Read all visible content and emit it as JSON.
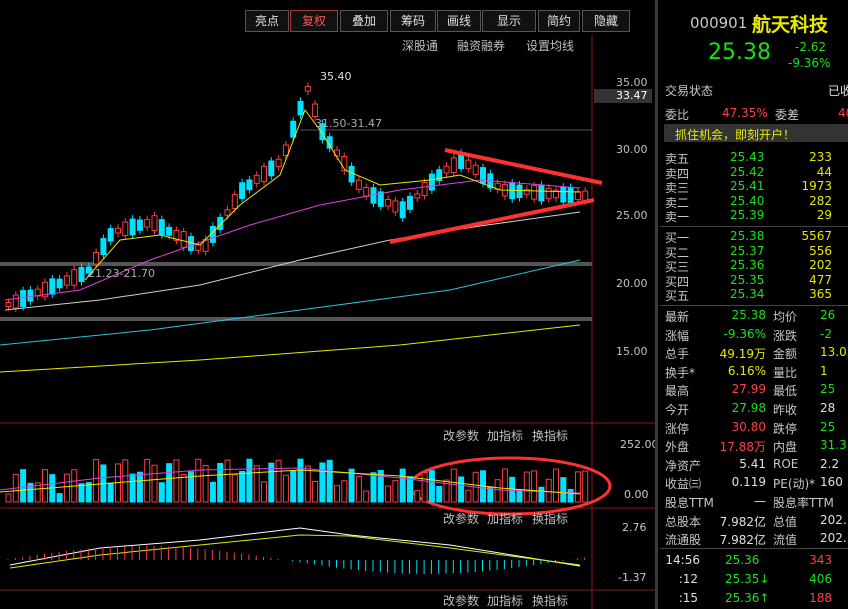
{
  "toolbar": {
    "buttons": [
      "亮点",
      "复权",
      "叠加",
      "筹码",
      "画线",
      "显示",
      "简约",
      "隐藏"
    ]
  },
  "chart_links": [
    "深股通",
    "融资融券",
    "设置均线"
  ],
  "price_axis": {
    "labels": [
      "35.00",
      "30.00",
      "25.00",
      "20.00",
      "15.00"
    ],
    "current": "33.47"
  },
  "annotations": [
    "35.40",
    "31.50-31.47",
    "21.23-21.70"
  ],
  "indicator_tools": [
    "改参数",
    "加指标",
    "换指标"
  ],
  "volume_axis": [
    "252.00",
    "0.00"
  ],
  "macd_axis": [
    "2.76",
    "-1.37"
  ],
  "quote": {
    "code": "000901",
    "name": "航天科技",
    "price": "25.38",
    "change": "-2.62",
    "change_pct": "-9.36%"
  },
  "status": {
    "label": "交易状态",
    "value": "已收"
  },
  "commission": {
    "ratio_label": "委比",
    "ratio": "47.35%",
    "diff_label": "委差",
    "diff": "40"
  },
  "promo": "抓住机会，即刻开户！",
  "order_book": [
    [
      "卖五",
      "25.43",
      "233"
    ],
    [
      "卖四",
      "25.42",
      "44"
    ],
    [
      "卖三",
      "25.41",
      "1973"
    ],
    [
      "卖二",
      "25.40",
      "282"
    ],
    [
      "卖一",
      "25.39",
      "29"
    ],
    [
      "买一",
      "25.38",
      "5567"
    ],
    [
      "买二",
      "25.37",
      "556"
    ],
    [
      "买三",
      "25.36",
      "202"
    ],
    [
      "买四",
      "25.35",
      "477"
    ],
    [
      "买五",
      "25.34",
      "365"
    ]
  ],
  "stats": [
    [
      "最新",
      "25.38",
      "均价",
      "26"
    ],
    [
      "涨幅",
      "-9.36%",
      "涨跌",
      "-2"
    ],
    [
      "总手",
      "49.19万",
      "金额",
      "13.0"
    ],
    [
      "换手*",
      "6.16%",
      "量比",
      "1"
    ],
    [
      "最高",
      "27.99",
      "最低",
      "25"
    ],
    [
      "今开",
      "27.98",
      "昨收",
      "28"
    ],
    [
      "涨停",
      "30.80",
      "跌停",
      "25"
    ],
    [
      "外盘",
      "17.88万",
      "内盘",
      "31.3"
    ],
    [
      "净资产",
      "5.41",
      "ROE",
      "2.2"
    ],
    [
      "收益㈢",
      "0.119",
      "PE(动)*",
      "160"
    ],
    [
      "股息TTM",
      "—",
      "股息率TTM",
      ""
    ],
    [
      "总股本",
      "7.982亿",
      "总值",
      "202."
    ],
    [
      "流通股",
      "7.982亿",
      "流值",
      "202."
    ]
  ],
  "ticks": [
    [
      "14:56",
      "25.36",
      "343"
    ],
    [
      ":12",
      "25.35↓",
      "406"
    ],
    [
      ":15",
      "25.36↑",
      "188"
    ]
  ]
}
